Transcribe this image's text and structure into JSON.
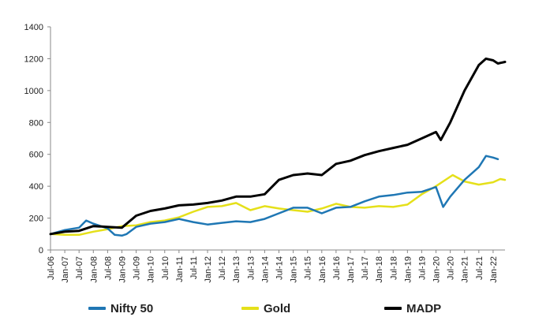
{
  "chart_data": {
    "type": "line",
    "title": "",
    "xlabel": "",
    "ylabel": "",
    "ylim": [
      0,
      1400
    ],
    "yticks": [
      0,
      200,
      400,
      600,
      800,
      1000,
      1200,
      1400
    ],
    "xlim": [
      "Jul-06",
      "Jun-22"
    ],
    "xtick_labels": [
      "Jul-06",
      "Jan-07",
      "Jul-07",
      "Jan-08",
      "Jul-08",
      "Jan-09",
      "Jul-09",
      "Jan-10",
      "Jul-10",
      "Jan-11",
      "Jul-11",
      "Jan-12",
      "Jul-12",
      "Jan-13",
      "Jul-13",
      "Jan-14",
      "Jul-14",
      "Jan-15",
      "Jul-15",
      "Jan-16",
      "Jul-16",
      "Jan-17",
      "Jul-17",
      "Jan-18",
      "Jul-18",
      "Jan-19",
      "Jul-19",
      "Jan-20",
      "Jul-20",
      "Jan-21",
      "Jul-21",
      "Jan-22"
    ],
    "grid": false,
    "legend_position": "bottom",
    "series": [
      {
        "name": "Nifty 50",
        "color": "#1f77b4",
        "points": [
          [
            "Jul-06",
            100
          ],
          [
            "Jan-07",
            125
          ],
          [
            "Jul-07",
            140
          ],
          [
            "Oct-07",
            185
          ],
          [
            "Jan-08",
            165
          ],
          [
            "Jul-08",
            135
          ],
          [
            "Oct-08",
            95
          ],
          [
            "Jan-09",
            90
          ],
          [
            "Mar-09",
            100
          ],
          [
            "Jul-09",
            145
          ],
          [
            "Jan-10",
            165
          ],
          [
            "Jul-10",
            175
          ],
          [
            "Jan-11",
            195
          ],
          [
            "Jul-11",
            175
          ],
          [
            "Jan-12",
            160
          ],
          [
            "Jul-12",
            170
          ],
          [
            "Jan-13",
            180
          ],
          [
            "Jul-13",
            175
          ],
          [
            "Jan-14",
            195
          ],
          [
            "Jul-14",
            230
          ],
          [
            "Jan-15",
            265
          ],
          [
            "Jul-15",
            265
          ],
          [
            "Jan-16",
            230
          ],
          [
            "Jul-16",
            265
          ],
          [
            "Jan-17",
            270
          ],
          [
            "Jul-17",
            305
          ],
          [
            "Jan-18",
            335
          ],
          [
            "Jul-18",
            345
          ],
          [
            "Jan-19",
            360
          ],
          [
            "Jul-19",
            365
          ],
          [
            "Jan-20",
            395
          ],
          [
            "Apr-20",
            270
          ],
          [
            "Jul-20",
            335
          ],
          [
            "Jan-21",
            440
          ],
          [
            "Jul-21",
            520
          ],
          [
            "Oct-21",
            590
          ],
          [
            "Jan-22",
            580
          ],
          [
            "Mar-22",
            570
          ]
        ]
      },
      {
        "name": "Gold",
        "color": "#e5e01a",
        "points": [
          [
            "Jul-06",
            100
          ],
          [
            "Jan-07",
            95
          ],
          [
            "Jul-07",
            95
          ],
          [
            "Jan-08",
            115
          ],
          [
            "Jul-08",
            130
          ],
          [
            "Jan-09",
            150
          ],
          [
            "Jul-09",
            155
          ],
          [
            "Jan-10",
            175
          ],
          [
            "Jul-10",
            185
          ],
          [
            "Jan-11",
            205
          ],
          [
            "Jul-11",
            240
          ],
          [
            "Jan-12",
            270
          ],
          [
            "Jul-12",
            275
          ],
          [
            "Jan-13",
            295
          ],
          [
            "Jul-13",
            250
          ],
          [
            "Jan-14",
            275
          ],
          [
            "Jul-14",
            260
          ],
          [
            "Jan-15",
            250
          ],
          [
            "Jul-15",
            240
          ],
          [
            "Jan-16",
            260
          ],
          [
            "Jul-16",
            290
          ],
          [
            "Jan-17",
            270
          ],
          [
            "Jul-17",
            265
          ],
          [
            "Jan-18",
            275
          ],
          [
            "Jul-18",
            270
          ],
          [
            "Jan-19",
            285
          ],
          [
            "Jul-19",
            350
          ],
          [
            "Jan-20",
            400
          ],
          [
            "Aug-20",
            470
          ],
          [
            "Jan-21",
            430
          ],
          [
            "Jul-21",
            410
          ],
          [
            "Jan-22",
            425
          ],
          [
            "Apr-22",
            445
          ],
          [
            "Jun-22",
            440
          ]
        ]
      },
      {
        "name": "MADP",
        "color": "#000000",
        "points": [
          [
            "Jul-06",
            100
          ],
          [
            "Jan-07",
            115
          ],
          [
            "Jul-07",
            120
          ],
          [
            "Jan-08",
            150
          ],
          [
            "Jul-08",
            145
          ],
          [
            "Jan-09",
            140
          ],
          [
            "Jul-09",
            215
          ],
          [
            "Jan-10",
            245
          ],
          [
            "Jul-10",
            260
          ],
          [
            "Jan-11",
            280
          ],
          [
            "Jul-11",
            285
          ],
          [
            "Jan-12",
            295
          ],
          [
            "Jul-12",
            310
          ],
          [
            "Jan-13",
            335
          ],
          [
            "Jul-13",
            335
          ],
          [
            "Jan-14",
            350
          ],
          [
            "Jul-14",
            440
          ],
          [
            "Jan-15",
            470
          ],
          [
            "Jul-15",
            480
          ],
          [
            "Jan-16",
            470
          ],
          [
            "Jul-16",
            540
          ],
          [
            "Jan-17",
            560
          ],
          [
            "Jul-17",
            595
          ],
          [
            "Jan-18",
            620
          ],
          [
            "Jul-18",
            640
          ],
          [
            "Jan-19",
            660
          ],
          [
            "Jul-19",
            700
          ],
          [
            "Jan-20",
            740
          ],
          [
            "Mar-20",
            690
          ],
          [
            "Jul-20",
            800
          ],
          [
            "Jan-21",
            1000
          ],
          [
            "Jul-21",
            1160
          ],
          [
            "Oct-21",
            1200
          ],
          [
            "Jan-22",
            1190
          ],
          [
            "Mar-22",
            1170
          ],
          [
            "Jun-22",
            1180
          ]
        ]
      }
    ]
  }
}
